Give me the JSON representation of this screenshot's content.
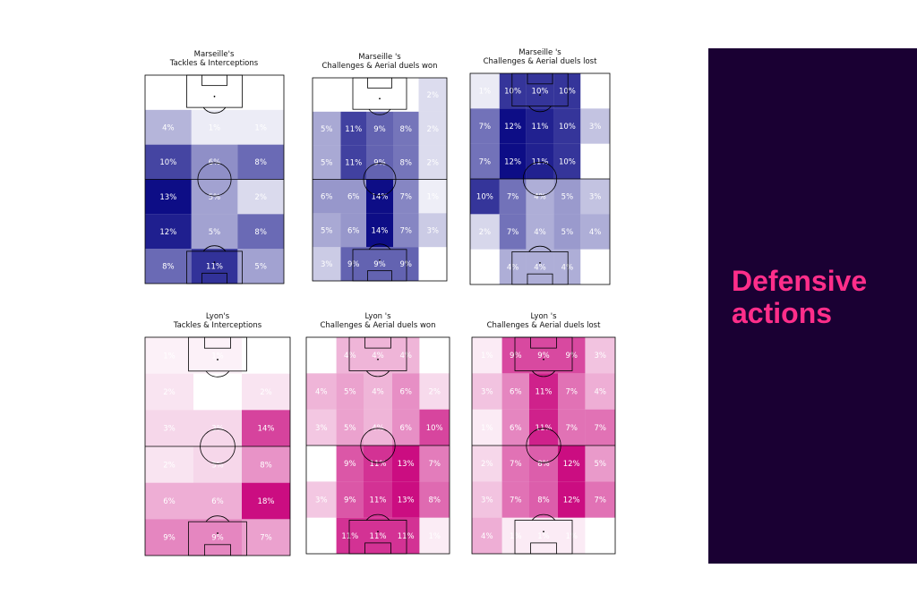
{
  "side_panel": {
    "title": "Defensive\nactions",
    "bg": "#1a0033",
    "title_color": "#ff2e8a"
  },
  "chart_data": [
    {
      "type": "heatmap",
      "title": "Marseille's\nTackles & Interceptions",
      "team": "Marseille",
      "color": "#000080",
      "rows": [
        [
          "0%",
          "0%",
          "0%"
        ],
        [
          "4%",
          "1%",
          "1%"
        ],
        [
          "10%",
          "6%",
          "8%"
        ],
        [
          "13%",
          "5%",
          "2%"
        ],
        [
          "12%",
          "5%",
          "8%"
        ],
        [
          "8%",
          "11%",
          "5%"
        ]
      ]
    },
    {
      "type": "heatmap",
      "title": "Marseille 's\nChallenges & Aerial duels won",
      "team": "Marseille",
      "color": "#000080",
      "rows": [
        [
          "0%",
          "0%",
          "0%",
          "0%",
          "2%"
        ],
        [
          "5%",
          "11%",
          "9%",
          "8%",
          "2%"
        ],
        [
          "5%",
          "11%",
          "9%",
          "8%",
          "2%"
        ],
        [
          "6%",
          "6%",
          "14%",
          "7%",
          "1%"
        ],
        [
          "5%",
          "6%",
          "14%",
          "7%",
          "3%"
        ],
        [
          "3%",
          "9%",
          "9%",
          "9%",
          "0%"
        ]
      ]
    },
    {
      "type": "heatmap",
      "title": "Marseille 's\nChallenges & Aerial duels lost",
      "team": "Marseille",
      "color": "#000080",
      "rows": [
        [
          "1%",
          "10%",
          "10%",
          "10%",
          "0%"
        ],
        [
          "7%",
          "12%",
          "11%",
          "10%",
          "3%"
        ],
        [
          "7%",
          "12%",
          "11%",
          "10%",
          "0%"
        ],
        [
          "10%",
          "7%",
          "4%",
          "5%",
          "3%"
        ],
        [
          "2%",
          "7%",
          "4%",
          "5%",
          "4%"
        ],
        [
          "0%",
          "4%",
          "4%",
          "4%",
          "0%"
        ]
      ]
    },
    {
      "type": "heatmap",
      "title": "Lyon's\nTackles & Interceptions",
      "team": "Lyon",
      "color": "#c8007a",
      "rows": [
        [
          "1%",
          "1%",
          "0%"
        ],
        [
          "2%",
          "0%",
          "2%"
        ],
        [
          "3%",
          "3%",
          "14%"
        ],
        [
          "2%",
          "3%",
          "8%"
        ],
        [
          "6%",
          "6%",
          "18%"
        ],
        [
          "9%",
          "9%",
          "7%"
        ]
      ]
    },
    {
      "type": "heatmap",
      "title": "Lyon 's\nChallenges & Aerial duels won",
      "team": "Lyon",
      "color": "#c8007a",
      "rows": [
        [
          "0%",
          "4%",
          "4%",
          "4%",
          "0%"
        ],
        [
          "4%",
          "5%",
          "4%",
          "6%",
          "2%"
        ],
        [
          "3%",
          "5%",
          "4%",
          "6%",
          "10%"
        ],
        [
          "0%",
          "9%",
          "11%",
          "13%",
          "7%"
        ],
        [
          "3%",
          "9%",
          "11%",
          "13%",
          "8%"
        ],
        [
          "0%",
          "11%",
          "11%",
          "11%",
          "1%"
        ]
      ]
    },
    {
      "type": "heatmap",
      "title": "Lyon 's\nChallenges & Aerial duels lost",
      "team": "Lyon",
      "color": "#c8007a",
      "rows": [
        [
          "1%",
          "9%",
          "9%",
          "9%",
          "3%"
        ],
        [
          "3%",
          "6%",
          "11%",
          "7%",
          "4%"
        ],
        [
          "1%",
          "6%",
          "11%",
          "7%",
          "7%"
        ],
        [
          "2%",
          "7%",
          "8%",
          "12%",
          "5%"
        ],
        [
          "3%",
          "7%",
          "8%",
          "12%",
          "7%"
        ],
        [
          "4%",
          "1%",
          "1%",
          "1%",
          "0%"
        ]
      ]
    }
  ]
}
